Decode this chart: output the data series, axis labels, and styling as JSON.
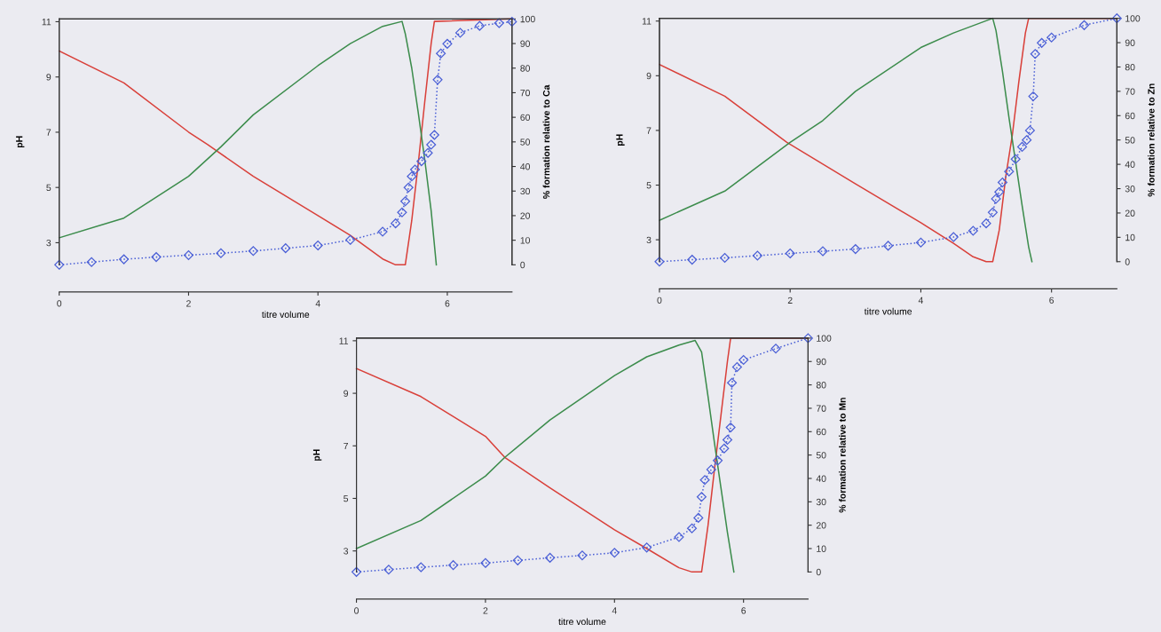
{
  "chart_data": [
    {
      "type": "line",
      "xlabel": "titre volume",
      "ylabel": "pH",
      "y2label": "% formation relative to Ca",
      "xlim": [
        0,
        7
      ],
      "xticks": [
        0,
        2,
        4,
        6
      ],
      "ylim": [
        2.2,
        11.1
      ],
      "yticks": [
        3,
        5,
        7,
        9,
        11
      ],
      "y2lim": [
        0,
        100
      ],
      "y2ticks": [
        0,
        10,
        20,
        30,
        40,
        50,
        60,
        70,
        80,
        90,
        100
      ],
      "grid": false,
      "series": [
        {
          "axis": "y2",
          "color": "#d9403a",
          "marker": "none",
          "line_style": "solid",
          "x": [
            0,
            1,
            2,
            2.29,
            3,
            4,
            4.5,
            5,
            5.2,
            5.35,
            5.45,
            5.55,
            5.65,
            5.75,
            5.8,
            7
          ],
          "values": [
            87,
            74,
            54,
            49,
            36,
            20,
            12,
            2.4,
            0,
            0,
            18,
            41,
            66,
            90,
            99,
            100
          ]
        },
        {
          "axis": "y2",
          "color": "#3c8c4c",
          "marker": "none",
          "line_style": "solid",
          "x": [
            0,
            1,
            2,
            2.5,
            3,
            4,
            4.5,
            5,
            5.3,
            5.35,
            5.45,
            5.55,
            5.65,
            5.75,
            5.83
          ],
          "values": [
            11,
            19,
            36,
            48,
            61,
            81,
            90,
            97,
            99,
            94,
            80,
            62,
            43,
            22,
            0
          ]
        },
        {
          "axis": "y",
          "color": "#4a5fd6",
          "marker": "diamond",
          "line_style": "dotted",
          "x": [
            0,
            0.5,
            1,
            1.5,
            2,
            2.5,
            3,
            3.5,
            4,
            4.5,
            5,
            5.2,
            5.3,
            5.35,
            5.4,
            5.45,
            5.5,
            5.6,
            5.7,
            5.75,
            5.8,
            5.85,
            5.9,
            6,
            6.2,
            6.5,
            6.8,
            7
          ],
          "values": [
            2.2,
            2.3,
            2.4,
            2.48,
            2.55,
            2.62,
            2.7,
            2.8,
            2.9,
            3.1,
            3.4,
            3.7,
            4.1,
            4.5,
            5.0,
            5.4,
            5.65,
            5.95,
            6.25,
            6.55,
            6.9,
            8.9,
            9.85,
            10.2,
            10.6,
            10.85,
            10.95,
            11.0
          ]
        }
      ]
    },
    {
      "type": "line",
      "xlabel": "titre volume",
      "ylabel": "pH",
      "y2label": "% formation relative to Zn",
      "xlim": [
        0,
        7
      ],
      "xticks": [
        0,
        2,
        4,
        6
      ],
      "ylim": [
        2.2,
        11.1
      ],
      "yticks": [
        3,
        5,
        7,
        9,
        11
      ],
      "y2lim": [
        0,
        100
      ],
      "y2ticks": [
        0,
        10,
        20,
        30,
        40,
        50,
        60,
        70,
        80,
        90,
        100
      ],
      "grid": false,
      "series": [
        {
          "axis": "y2",
          "color": "#d9403a",
          "marker": "none",
          "line_style": "solid",
          "x": [
            0,
            1,
            1.95,
            3,
            4,
            4.5,
            4.8,
            5,
            5.1,
            5.2,
            5.3,
            5.4,
            5.5,
            5.6,
            5.65,
            7
          ],
          "values": [
            81,
            68,
            49,
            32,
            16,
            7.5,
            2,
            0,
            0,
            13,
            35,
            52,
            74,
            94,
            100,
            100
          ]
        },
        {
          "axis": "y2",
          "color": "#3c8c4c",
          "marker": "none",
          "line_style": "solid",
          "x": [
            0,
            1,
            2,
            2.5,
            3,
            4,
            4.5,
            5,
            5.1,
            5.15,
            5.25,
            5.35,
            5.45,
            5.55,
            5.65,
            5.7
          ],
          "values": [
            17,
            29,
            49,
            58,
            70,
            88,
            94,
            99,
            100,
            95,
            78,
            59,
            41,
            23,
            6,
            0
          ]
        },
        {
          "axis": "y",
          "color": "#4a5fd6",
          "marker": "diamond",
          "line_style": "dotted",
          "x": [
            0,
            0.5,
            1,
            1.5,
            2,
            2.5,
            3,
            3.5,
            4,
            4.5,
            4.8,
            5,
            5.1,
            5.15,
            5.2,
            5.25,
            5.35,
            5.45,
            5.55,
            5.62,
            5.67,
            5.72,
            5.75,
            5.85,
            6,
            6.5,
            7
          ],
          "values": [
            2.2,
            2.27,
            2.34,
            2.42,
            2.5,
            2.58,
            2.66,
            2.78,
            2.9,
            3.1,
            3.33,
            3.6,
            4.0,
            4.5,
            4.75,
            5.1,
            5.5,
            5.95,
            6.4,
            6.65,
            7.0,
            8.25,
            9.8,
            10.2,
            10.4,
            10.85,
            11.1
          ]
        }
      ]
    },
    {
      "type": "line",
      "xlabel": "titre volume",
      "ylabel": "pH",
      "y2label": "% formation relative to Mn",
      "xlim": [
        0,
        7
      ],
      "xticks": [
        0,
        2,
        4,
        6
      ],
      "ylim": [
        2.2,
        11.1
      ],
      "yticks": [
        3,
        5,
        7,
        9,
        11
      ],
      "y2lim": [
        0,
        100
      ],
      "y2ticks": [
        0,
        10,
        20,
        30,
        40,
        50,
        60,
        70,
        80,
        90,
        100
      ],
      "grid": false,
      "series": [
        {
          "axis": "y2",
          "color": "#d9403a",
          "marker": "none",
          "line_style": "solid",
          "x": [
            0,
            1,
            2,
            2.3,
            3,
            4,
            4.5,
            5,
            5.2,
            5.35,
            5.45,
            5.55,
            5.65,
            5.75,
            5.8,
            7
          ],
          "values": [
            87,
            75,
            58,
            49,
            36,
            18,
            10,
            1.8,
            0,
            0,
            20,
            44,
            67,
            90,
            100,
            100
          ]
        },
        {
          "axis": "y2",
          "color": "#3c8c4c",
          "marker": "none",
          "line_style": "solid",
          "x": [
            0,
            1,
            2,
            2.3,
            3,
            4,
            4.5,
            5,
            5.25,
            5.35,
            5.45,
            5.55,
            5.65,
            5.75,
            5.85
          ],
          "values": [
            10,
            22,
            41,
            49,
            65,
            84,
            92,
            97,
            99,
            94,
            75,
            55,
            36,
            17,
            0
          ]
        },
        {
          "axis": "y",
          "color": "#4a5fd6",
          "marker": "diamond",
          "line_style": "dotted",
          "x": [
            0,
            0.5,
            1,
            1.5,
            2,
            2.5,
            3,
            3.5,
            4,
            4.5,
            5,
            5.2,
            5.3,
            5.35,
            5.4,
            5.5,
            5.6,
            5.7,
            5.75,
            5.8,
            5.82,
            5.9,
            6,
            6.5,
            7
          ],
          "values": [
            2.2,
            2.29,
            2.38,
            2.46,
            2.54,
            2.64,
            2.74,
            2.83,
            2.93,
            3.13,
            3.53,
            3.86,
            4.26,
            5.06,
            5.7,
            6.1,
            6.44,
            6.9,
            7.23,
            7.7,
            9.4,
            10.0,
            10.27,
            10.7,
            11.1
          ]
        }
      ]
    }
  ]
}
